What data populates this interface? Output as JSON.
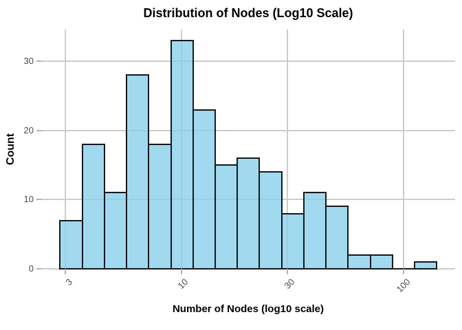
{
  "chart_data": {
    "type": "bar",
    "subtype": "histogram",
    "title": "Distribution of Nodes (Log10 Scale)",
    "xlabel": "Number of Nodes (log10 scale)",
    "ylabel": "Count",
    "x_scale": "log10",
    "grid": true,
    "legend": false,
    "x_tick_labels": [
      "3",
      "10",
      "30",
      "100"
    ],
    "x_tick_values": [
      3,
      10,
      30,
      100
    ],
    "y_tick_labels": [
      "0",
      "10",
      "20",
      "30"
    ],
    "y_tick_values": [
      0,
      10,
      20,
      30
    ],
    "x_range": [
      2.34,
      170.6
    ],
    "y_range": [
      0,
      34.6
    ],
    "bin_edges": [
      2.84,
      3.58,
      4.5,
      5.66,
      7.13,
      8.97,
      11.28,
      14.19,
      17.86,
      22.47,
      28.27,
      35.58,
      44.76,
      56.31,
      70.84,
      89.14,
      112.15,
      141.12
    ],
    "counts": [
      7,
      18,
      11,
      28,
      18,
      33,
      23,
      15,
      16,
      14,
      8,
      11,
      9,
      2,
      2,
      0,
      1
    ],
    "colors": {
      "bar_fill": "#87CEEB",
      "bar_fill_alpha": 0.78,
      "bar_edge": "#14181c",
      "grid": "#cccccc",
      "tick": "#b3b3b3",
      "tick_label": "#4a4a4a",
      "text": "#000000"
    }
  }
}
